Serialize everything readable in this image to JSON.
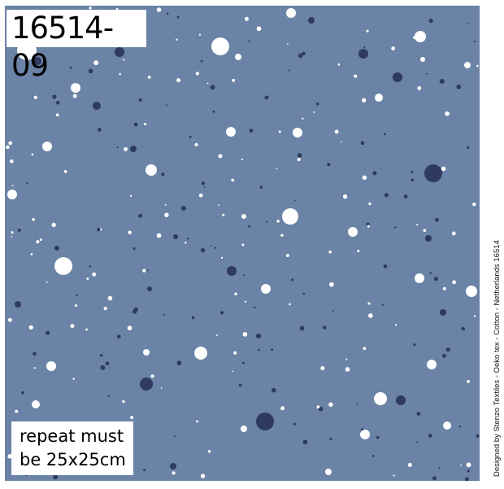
{
  "pattern": {
    "background_color": "#6a83a6",
    "light_dot_color": "#ffffff",
    "dark_dot_color": "#2e3a5e"
  },
  "labels": {
    "design_code": "16514-09",
    "repeat_line1": "repeat must",
    "repeat_line2": "be 25x25cm",
    "credit": "Designed by Stenzo Textiles - Oeko tex - Cotton - Netherlands 16514"
  }
}
